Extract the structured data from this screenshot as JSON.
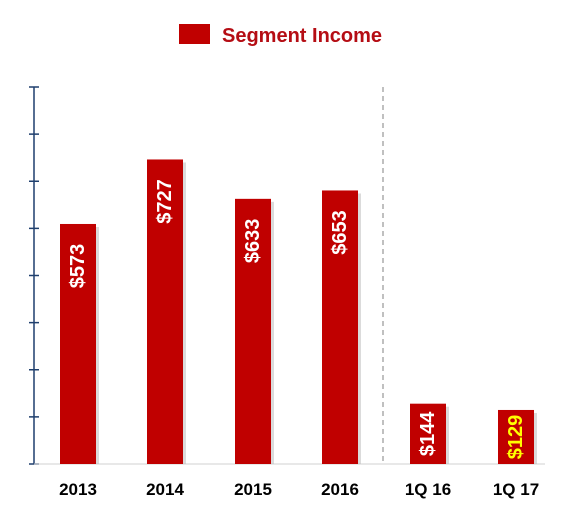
{
  "chart_data": {
    "type": "bar",
    "categories": [
      "2013",
      "2014",
      "2015",
      "2016",
      "1Q 16",
      "1Q 17"
    ],
    "values": [
      573,
      727,
      633,
      653,
      144,
      129
    ],
    "value_labels": [
      "$573",
      "$727",
      "$633",
      "$653",
      "$144",
      "$129"
    ],
    "value_label_colors": [
      "#ffffff",
      "#ffffff",
      "#ffffff",
      "#ffffff",
      "#ffffff",
      "#ffff00"
    ],
    "series": [
      {
        "name": "Segment Income",
        "values": [
          573,
          727,
          633,
          653,
          144,
          129
        ]
      }
    ],
    "ylim": [
      0,
      900
    ],
    "y_tick_count": 8,
    "legend_position": "top-center",
    "divider_after_category_index": 3,
    "grid": false,
    "colors": {
      "bar": "#c00000",
      "axis": "#1f3f6e",
      "divider": "#808080"
    }
  }
}
